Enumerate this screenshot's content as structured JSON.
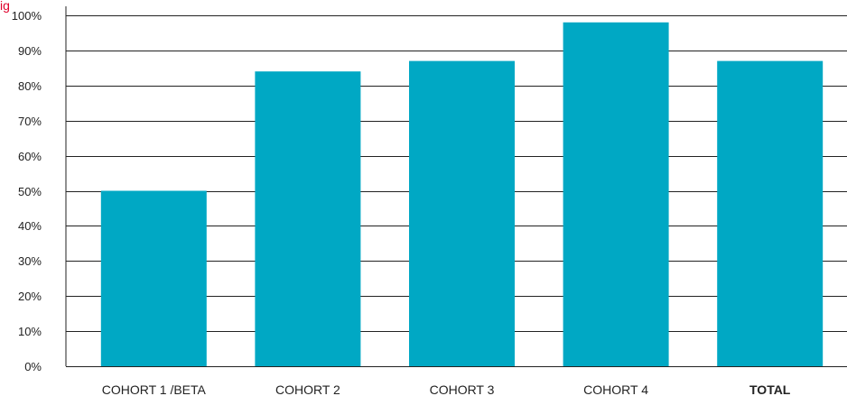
{
  "header": {
    "cropped_title": "ig",
    "title_color": "#e0002b"
  },
  "chart_data": {
    "type": "bar",
    "categories": [
      "COHORT 1 /BETA",
      "COHORT 2",
      "COHORT 3",
      "COHORT 4",
      "TOTAL"
    ],
    "bold_categories": [
      "TOTAL"
    ],
    "values": [
      50,
      84,
      87,
      98,
      87
    ],
    "ylim": [
      0,
      100
    ],
    "yticks": [
      0,
      10,
      20,
      30,
      40,
      50,
      60,
      70,
      80,
      90,
      100
    ],
    "ytick_labels": [
      "0%",
      "10%",
      "20%",
      "30%",
      "40%",
      "50%",
      "60%",
      "70%",
      "80%",
      "90%",
      "100%"
    ],
    "grid": true,
    "legend": "none",
    "bar_color": "#00a8c4"
  }
}
